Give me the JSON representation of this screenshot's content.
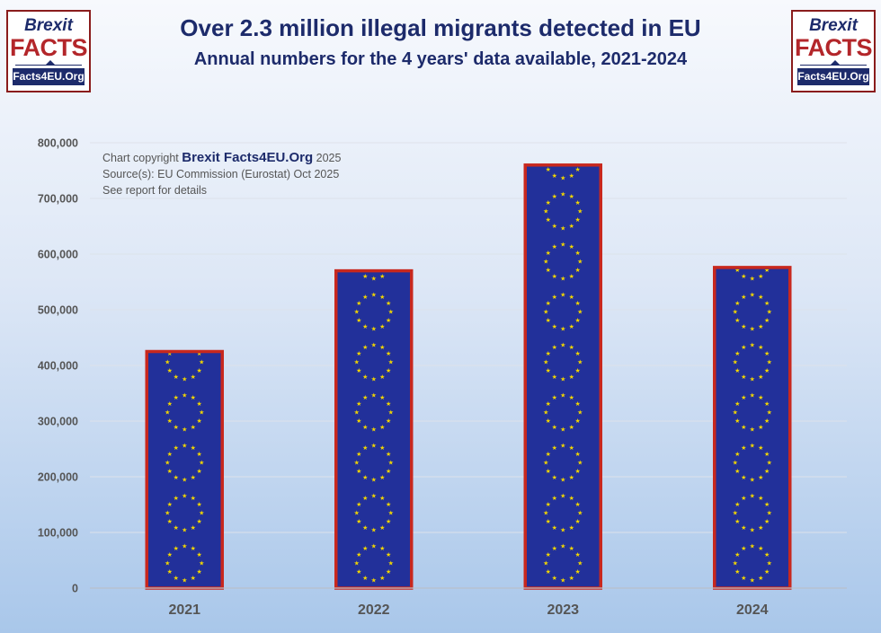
{
  "logo": {
    "line1": "Brexit",
    "line2": "FACTS",
    "line3": "Facts4EU.Org"
  },
  "header": {
    "title": "Over 2.3 million illegal migrants detected in EU",
    "subtitle": "Annual numbers for the 4 years' data available, 2021-2024"
  },
  "credits": {
    "copyright_prefix": "Chart copyright",
    "copyright_brand": "Brexit Facts4EU.Org",
    "copyright_year": "2025",
    "source": "Source(s): EU Commission (Eurostat) Oct 2025",
    "note": "See report for details"
  },
  "chart_data": {
    "type": "bar",
    "categories": [
      "2021",
      "2022",
      "2023",
      "2024"
    ],
    "values": [
      425000,
      570000,
      760000,
      576000
    ],
    "ylim": [
      0,
      800000
    ],
    "yticks": [
      0,
      100000,
      200000,
      300000,
      400000,
      500000,
      600000,
      700000,
      800000
    ],
    "ytick_labels": [
      "0",
      "100,000",
      "200,000",
      "300,000",
      "400,000",
      "500,000",
      "600,000",
      "700,000",
      "800,000"
    ],
    "grid": true,
    "colors": {
      "bar_fill": "#22309a",
      "bar_border": "#c8281e",
      "star": "#f2d600",
      "axis_text": "#555555",
      "grid": "#dde2ea"
    }
  }
}
